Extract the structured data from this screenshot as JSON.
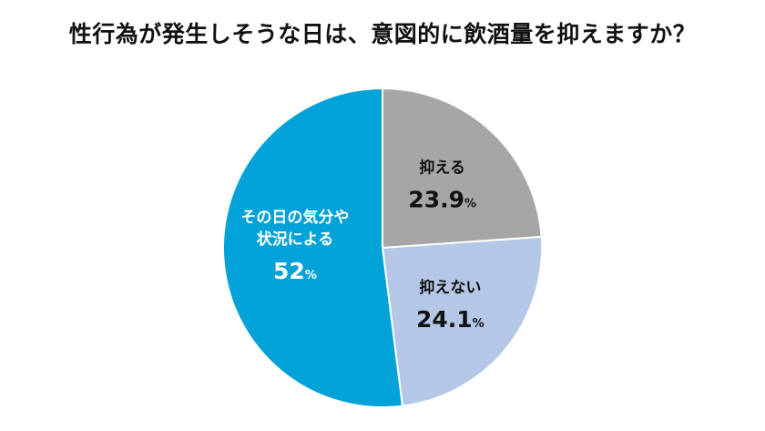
{
  "chart_data": {
    "type": "pie",
    "title": "性行為が発生しそうな日は、意図的に飲酒量を抑えますか？",
    "start_angle_deg": 0,
    "direction": "clockwise",
    "slices": [
      {
        "label_lines": [
          "抑える"
        ],
        "value": 23.9,
        "value_text": "23.9",
        "unit": "%",
        "color": "#A8A5A5",
        "text_color": "#111111"
      },
      {
        "label_lines": [
          "抑えない"
        ],
        "value": 24.1,
        "value_text": "24.1",
        "unit": "%",
        "color": "#B4C7E7",
        "text_color": "#111111"
      },
      {
        "label_lines": [
          "その日の気分や",
          "状況による"
        ],
        "value": 52,
        "value_text": "52",
        "unit": "%",
        "color": "#00A2D8",
        "text_color": "#FFFFFF"
      }
    ]
  }
}
